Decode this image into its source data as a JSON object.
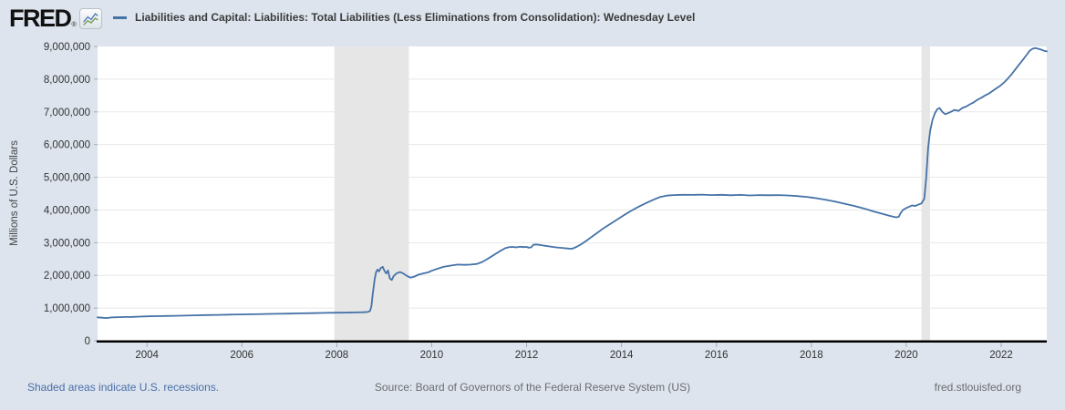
{
  "header": {
    "logo_text": "FRED",
    "logo_reg": "®",
    "title": "Liabilities and Capital: Liabilities: Total Liabilities (Less Eliminations from Consolidation): Wednesday Level"
  },
  "footer": {
    "recessions_note": "Shaded areas indicate U.S. recessions.",
    "source": "Source: Board of Governors of the Federal Reserve System (US)",
    "site": "fred.stlouisfed.org"
  },
  "chart_data": {
    "type": "line",
    "title": "Liabilities and Capital: Liabilities: Total Liabilities (Less Eliminations from Consolidation): Wednesday Level",
    "xlabel": "",
    "ylabel": "Millions of U.S. Dollars",
    "x_range": [
      2002.96,
      2022.96
    ],
    "ylim": [
      0,
      9000000
    ],
    "grid": "horizontal",
    "legend_position": "top",
    "x_tick_values": [
      2004,
      2006,
      2008,
      2010,
      2012,
      2014,
      2016,
      2018,
      2020,
      2022
    ],
    "x_tick_labels": [
      "2004",
      "2006",
      "2008",
      "2010",
      "2012",
      "2014",
      "2016",
      "2018",
      "2020",
      "2022"
    ],
    "y_tick_values": [
      0,
      1000000,
      2000000,
      3000000,
      4000000,
      5000000,
      6000000,
      7000000,
      8000000,
      9000000
    ],
    "y_tick_labels": [
      "0",
      "1,000,000",
      "2,000,000",
      "3,000,000",
      "4,000,000",
      "5,000,000",
      "6,000,000",
      "7,000,000",
      "8,000,000",
      "9,000,000"
    ],
    "recession_bands": [
      {
        "start": 2007.95,
        "end": 2009.52
      },
      {
        "start": 2020.32,
        "end": 2020.5
      }
    ],
    "colors": {
      "line": "#4572a7",
      "recession_band": "#e6e6e6",
      "gridline": "#e8e8e8",
      "axis_line": "#000000",
      "tick": "#a3adba",
      "plot_background": "#ffffff",
      "page_background": "#dde4ed"
    },
    "series": [
      {
        "name": "Liabilities and Capital: Liabilities: Total Liabilities (Less Eliminations from Consolidation): Wednesday Level",
        "units": "Millions of U.S. Dollars",
        "points": [
          [
            2002.96,
            715000
          ],
          [
            2003.05,
            705000
          ],
          [
            2003.15,
            695000
          ],
          [
            2003.25,
            712000
          ],
          [
            2003.4,
            722000
          ],
          [
            2003.55,
            728000
          ],
          [
            2003.7,
            730000
          ],
          [
            2003.85,
            738000
          ],
          [
            2004.0,
            748000
          ],
          [
            2004.2,
            752000
          ],
          [
            2004.4,
            758000
          ],
          [
            2004.6,
            764000
          ],
          [
            2004.8,
            770000
          ],
          [
            2005.0,
            778000
          ],
          [
            2005.25,
            785000
          ],
          [
            2005.5,
            792000
          ],
          [
            2005.75,
            800000
          ],
          [
            2006.0,
            806000
          ],
          [
            2006.25,
            812000
          ],
          [
            2006.5,
            818000
          ],
          [
            2006.75,
            824000
          ],
          [
            2007.0,
            830000
          ],
          [
            2007.25,
            838000
          ],
          [
            2007.5,
            845000
          ],
          [
            2007.75,
            852000
          ],
          [
            2008.0,
            858000
          ],
          [
            2008.2,
            862000
          ],
          [
            2008.4,
            866000
          ],
          [
            2008.55,
            872000
          ],
          [
            2008.65,
            880000
          ],
          [
            2008.7,
            910000
          ],
          [
            2008.73,
            1050000
          ],
          [
            2008.76,
            1450000
          ],
          [
            2008.8,
            1900000
          ],
          [
            2008.83,
            2100000
          ],
          [
            2008.86,
            2180000
          ],
          [
            2008.89,
            2120000
          ],
          [
            2008.93,
            2230000
          ],
          [
            2008.97,
            2260000
          ],
          [
            2009.0,
            2150000
          ],
          [
            2009.04,
            2060000
          ],
          [
            2009.08,
            2150000
          ],
          [
            2009.12,
            1900000
          ],
          [
            2009.16,
            1860000
          ],
          [
            2009.2,
            1980000
          ],
          [
            2009.26,
            2060000
          ],
          [
            2009.33,
            2100000
          ],
          [
            2009.4,
            2060000
          ],
          [
            2009.48,
            1980000
          ],
          [
            2009.55,
            1930000
          ],
          [
            2009.63,
            1960000
          ],
          [
            2009.72,
            2020000
          ],
          [
            2009.82,
            2060000
          ],
          [
            2009.92,
            2090000
          ],
          [
            2010.0,
            2140000
          ],
          [
            2010.12,
            2200000
          ],
          [
            2010.25,
            2260000
          ],
          [
            2010.4,
            2300000
          ],
          [
            2010.55,
            2330000
          ],
          [
            2010.7,
            2320000
          ],
          [
            2010.82,
            2330000
          ],
          [
            2010.95,
            2350000
          ],
          [
            2011.05,
            2400000
          ],
          [
            2011.15,
            2480000
          ],
          [
            2011.25,
            2570000
          ],
          [
            2011.35,
            2660000
          ],
          [
            2011.45,
            2750000
          ],
          [
            2011.55,
            2830000
          ],
          [
            2011.62,
            2860000
          ],
          [
            2011.7,
            2870000
          ],
          [
            2011.78,
            2855000
          ],
          [
            2011.86,
            2875000
          ],
          [
            2011.94,
            2865000
          ],
          [
            2012.0,
            2870000
          ],
          [
            2012.05,
            2845000
          ],
          [
            2012.1,
            2860000
          ],
          [
            2012.14,
            2935000
          ],
          [
            2012.2,
            2945000
          ],
          [
            2012.28,
            2930000
          ],
          [
            2012.38,
            2905000
          ],
          [
            2012.5,
            2880000
          ],
          [
            2012.62,
            2855000
          ],
          [
            2012.75,
            2840000
          ],
          [
            2012.88,
            2820000
          ],
          [
            2012.96,
            2815000
          ],
          [
            2013.05,
            2870000
          ],
          [
            2013.15,
            2950000
          ],
          [
            2013.3,
            3100000
          ],
          [
            2013.45,
            3260000
          ],
          [
            2013.6,
            3420000
          ],
          [
            2013.75,
            3560000
          ],
          [
            2013.9,
            3700000
          ],
          [
            2014.05,
            3840000
          ],
          [
            2014.2,
            3970000
          ],
          [
            2014.35,
            4090000
          ],
          [
            2014.5,
            4200000
          ],
          [
            2014.65,
            4300000
          ],
          [
            2014.8,
            4390000
          ],
          [
            2014.95,
            4440000
          ],
          [
            2015.1,
            4455000
          ],
          [
            2015.3,
            4465000
          ],
          [
            2015.5,
            4460000
          ],
          [
            2015.7,
            4470000
          ],
          [
            2015.9,
            4455000
          ],
          [
            2016.1,
            4465000
          ],
          [
            2016.3,
            4450000
          ],
          [
            2016.5,
            4460000
          ],
          [
            2016.7,
            4445000
          ],
          [
            2016.9,
            4455000
          ],
          [
            2017.1,
            4450000
          ],
          [
            2017.3,
            4455000
          ],
          [
            2017.5,
            4445000
          ],
          [
            2017.7,
            4425000
          ],
          [
            2017.9,
            4400000
          ],
          [
            2018.1,
            4360000
          ],
          [
            2018.3,
            4310000
          ],
          [
            2018.5,
            4255000
          ],
          [
            2018.7,
            4190000
          ],
          [
            2018.9,
            4125000
          ],
          [
            2019.1,
            4050000
          ],
          [
            2019.3,
            3960000
          ],
          [
            2019.5,
            3880000
          ],
          [
            2019.65,
            3820000
          ],
          [
            2019.78,
            3775000
          ],
          [
            2019.84,
            3790000
          ],
          [
            2019.88,
            3900000
          ],
          [
            2019.93,
            4000000
          ],
          [
            2020.0,
            4060000
          ],
          [
            2020.06,
            4100000
          ],
          [
            2020.12,
            4140000
          ],
          [
            2020.18,
            4120000
          ],
          [
            2020.25,
            4160000
          ],
          [
            2020.32,
            4200000
          ],
          [
            2020.38,
            4350000
          ],
          [
            2020.42,
            5000000
          ],
          [
            2020.46,
            5900000
          ],
          [
            2020.5,
            6400000
          ],
          [
            2020.55,
            6750000
          ],
          [
            2020.6,
            6950000
          ],
          [
            2020.65,
            7080000
          ],
          [
            2020.7,
            7120000
          ],
          [
            2020.76,
            7000000
          ],
          [
            2020.82,
            6930000
          ],
          [
            2020.88,
            6960000
          ],
          [
            2020.95,
            7010000
          ],
          [
            2021.02,
            7060000
          ],
          [
            2021.1,
            7030000
          ],
          [
            2021.18,
            7120000
          ],
          [
            2021.26,
            7160000
          ],
          [
            2021.34,
            7230000
          ],
          [
            2021.42,
            7290000
          ],
          [
            2021.5,
            7370000
          ],
          [
            2021.58,
            7430000
          ],
          [
            2021.66,
            7500000
          ],
          [
            2021.74,
            7560000
          ],
          [
            2021.82,
            7640000
          ],
          [
            2021.9,
            7720000
          ],
          [
            2021.98,
            7800000
          ],
          [
            2022.06,
            7900000
          ],
          [
            2022.14,
            8020000
          ],
          [
            2022.22,
            8150000
          ],
          [
            2022.3,
            8300000
          ],
          [
            2022.38,
            8450000
          ],
          [
            2022.46,
            8600000
          ],
          [
            2022.54,
            8750000
          ],
          [
            2022.6,
            8870000
          ],
          [
            2022.66,
            8930000
          ],
          [
            2022.72,
            8950000
          ],
          [
            2022.78,
            8930000
          ],
          [
            2022.85,
            8900000
          ],
          [
            2022.9,
            8870000
          ],
          [
            2022.96,
            8850000
          ]
        ]
      }
    ]
  }
}
